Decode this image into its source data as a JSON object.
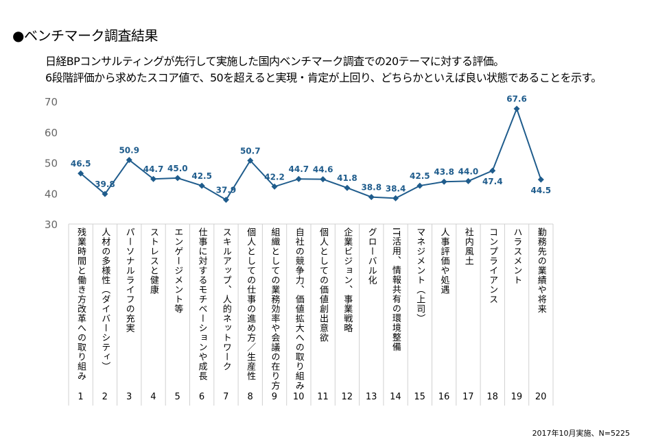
{
  "title": "●ベンチマーク調査結果",
  "description": [
    "日経BPコンサルティングが先行して実施した国内ベンチマーク調査での20テーマに対する評価。",
    "6段階評価から求めたスコア値で、50を超えると実現・肯定が上回り、どちらかといえば良い状態であることを示す。"
  ],
  "note": "2017年10月実施、N=5225",
  "chart_data": {
    "type": "line",
    "title": "",
    "xlabel": "",
    "ylabel": "",
    "ylim": [
      30,
      70
    ],
    "yticks": [
      30,
      40,
      50,
      60,
      70
    ],
    "grid": false,
    "legend": "none",
    "line_color": "#1f5c8c",
    "categories": [
      "1",
      "2",
      "3",
      "4",
      "5",
      "6",
      "7",
      "8",
      "9",
      "10",
      "11",
      "12",
      "13",
      "14",
      "15",
      "16",
      "17",
      "18",
      "19",
      "20"
    ],
    "category_labels": [
      "残業時間と働き方改革への取り組み",
      "人材の多様性（ダイバーシティ）",
      "パーソナルライフの充実",
      "ストレスと健康",
      "エンゲージメント等",
      "仕事に対するモチベーションや成長",
      "スキルアップ、人的ネットワーク",
      "個人としての仕事の進め方／生産性",
      "組織としての業務効率や会議の在り方",
      "自社の競争力、価値拡大への取り組み",
      "個人としての価値創出意欲",
      "企業ビジョン、事業戦略",
      "グローバル化",
      "IT活用、情報共有の環境整備",
      "マネジメント（上司）",
      "人事評価や処遇",
      "社内風土",
      "コンプライアンス",
      "ハラスメント",
      "勤務先の業績や将来"
    ],
    "values": [
      46.5,
      39.8,
      50.9,
      44.7,
      45.0,
      42.5,
      37.9,
      50.7,
      42.2,
      44.7,
      44.6,
      41.8,
      38.8,
      38.4,
      42.5,
      43.8,
      44.0,
      47.4,
      67.6,
      44.5
    ],
    "value_labels": [
      "46.5",
      "39.8",
      "50.9",
      "44.7",
      "45.0",
      "42.5",
      "37.9",
      "50.7",
      "42.2",
      "44.7",
      "44.6",
      "41.8",
      "38.8",
      "38.4",
      "42.5",
      "43.8",
      "44.0",
      "47.4",
      "67.6",
      "44.5"
    ]
  }
}
